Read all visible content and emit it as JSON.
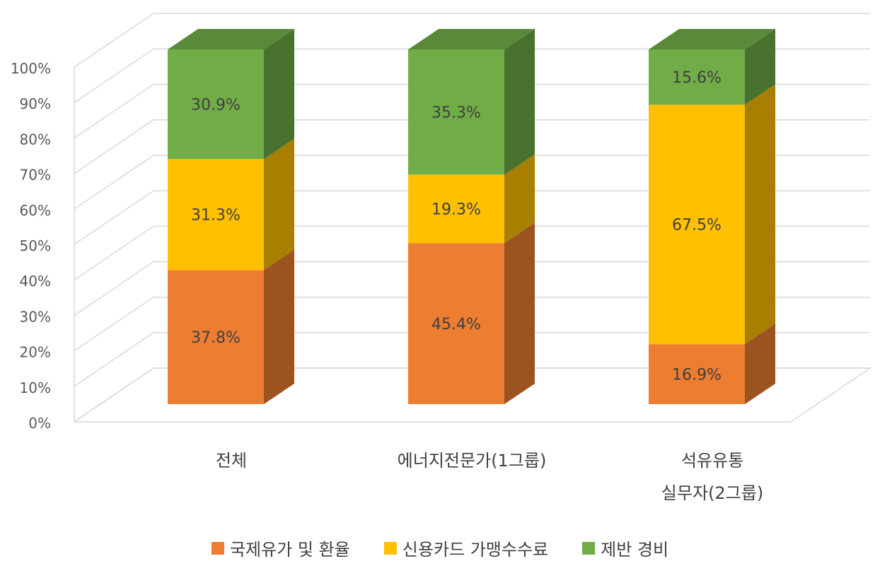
{
  "chart_data": {
    "type": "bar",
    "stacked": true,
    "percent": true,
    "three_d": true,
    "title": "",
    "xlabel": "",
    "ylabel": "",
    "ylim": [
      0,
      100
    ],
    "y_ticks": [
      "0%",
      "10%",
      "20%",
      "30%",
      "40%",
      "50%",
      "60%",
      "70%",
      "80%",
      "90%",
      "100%"
    ],
    "grid": true,
    "legend_position": "bottom",
    "categories": [
      [
        "전체"
      ],
      [
        "에너지전문가(1그룹)"
      ],
      [
        "석유유통",
        "실무자(2그룹)"
      ]
    ],
    "series": [
      {
        "name": "국제유가 및 환율",
        "color": "#ED7D31",
        "values": [
          37.8,
          45.4,
          16.9
        ],
        "labels": [
          "37.8%",
          "45.4%",
          "16.9%"
        ]
      },
      {
        "name": "신용카드 가맹수수료",
        "color": "#FFC000",
        "values": [
          31.3,
          19.3,
          67.5
        ],
        "labels": [
          "31.3%",
          "19.3%",
          "67.5%"
        ]
      },
      {
        "name": "제반 경비",
        "color": "#70AD47",
        "values": [
          30.9,
          35.3,
          15.6
        ],
        "labels": [
          "30.9%",
          "35.3%",
          "15.6%"
        ]
      }
    ]
  }
}
